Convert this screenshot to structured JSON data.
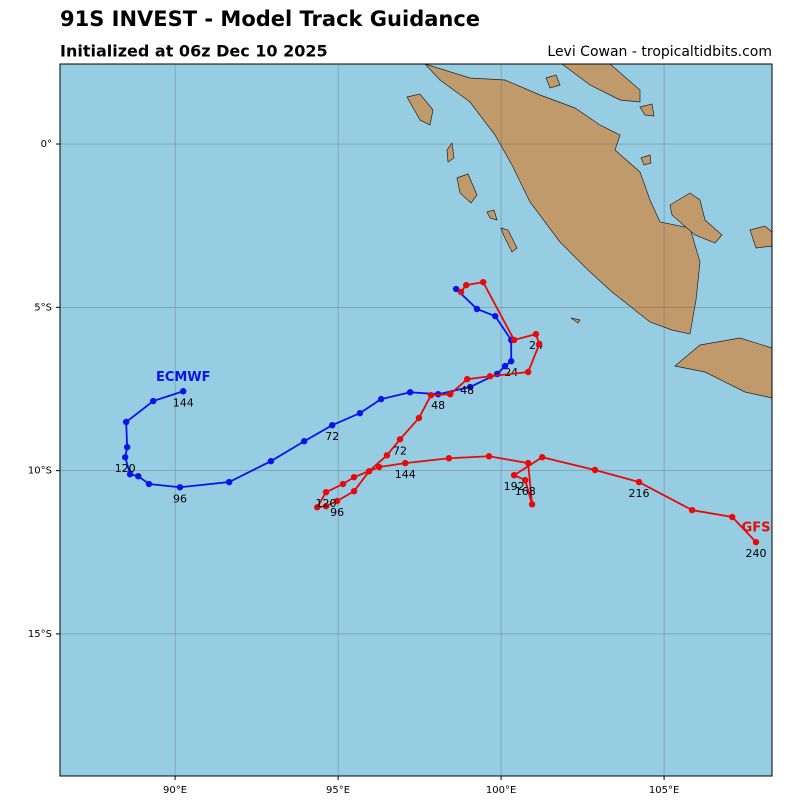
{
  "chart_data": {
    "type": "track-map",
    "title": "91S INVEST - Model Track Guidance",
    "subtitle": "Initialized at 06z Dec 10 2025",
    "credit": "Levi Cowan - tropicaltidbits.com",
    "xlim": [
      86.47,
      108.31
    ],
    "ylim": [
      -19.35,
      2.45
    ],
    "xticks": [
      {
        "value": 90,
        "label": "90°E"
      },
      {
        "value": 95,
        "label": "95°E"
      },
      {
        "value": 100,
        "label": "100°E"
      },
      {
        "value": 105,
        "label": "105°E"
      }
    ],
    "yticks": [
      {
        "value": 0,
        "label": "0°"
      },
      {
        "value": -5,
        "label": "5°S"
      },
      {
        "value": -10,
        "label": "10°S"
      },
      {
        "value": -15,
        "label": "15°S"
      }
    ],
    "grid": true,
    "series": [
      {
        "name": "ECMWF",
        "color": "#0a14e6",
        "x": [
          98.62,
          99.26,
          99.82,
          100.31,
          100.31,
          100.12,
          99.88,
          99.05,
          98.07,
          97.21,
          96.32,
          95.67,
          94.82,
          93.96,
          92.94,
          91.66,
          90.15,
          89.2,
          88.87,
          88.62,
          88.47,
          88.53,
          88.5,
          89.33,
          90.25
        ],
        "y": [
          -4.44,
          -5.05,
          -5.27,
          -6.0,
          -6.65,
          -6.8,
          -7.04,
          -7.44,
          -7.66,
          -7.6,
          -7.81,
          -8.24,
          -8.61,
          -9.1,
          -9.71,
          -10.35,
          -10.51,
          -10.41,
          -10.17,
          -10.11,
          -9.59,
          -9.28,
          -8.51,
          -7.87,
          -7.57
        ],
        "hours": [
          null,
          null,
          null,
          null,
          24,
          null,
          null,
          null,
          48,
          null,
          null,
          null,
          72,
          null,
          null,
          null,
          96,
          null,
          null,
          null,
          120,
          null,
          null,
          null,
          144
        ]
      },
      {
        "name": "GFS",
        "color": "#e60a0a",
        "x": [
          98.77,
          98.93,
          99.45,
          100.4,
          101.07,
          101.17,
          100.83,
          99.66,
          98.96,
          98.44,
          97.85,
          97.48,
          96.9,
          96.5,
          95.95,
          95.49,
          94.97,
          94.63,
          94.36,
          94.63,
          95.15,
          95.49,
          96.26,
          97.06,
          98.4,
          99.63,
          100.83,
          100.95,
          100.74,
          100.4,
          101.26,
          102.88,
          104.23,
          105.86,
          107.09,
          107.82
        ],
        "y": [
          -4.53,
          -4.32,
          -4.23,
          -6.0,
          -5.82,
          -6.13,
          -6.98,
          -7.11,
          -7.2,
          -7.66,
          -7.69,
          -8.39,
          -9.04,
          -9.53,
          -10.02,
          -10.63,
          -10.93,
          -11.09,
          -11.12,
          -10.66,
          -10.41,
          -10.2,
          -9.89,
          -9.77,
          -9.62,
          -9.56,
          -9.77,
          -11.03,
          -10.29,
          -10.14,
          -9.59,
          -9.98,
          -10.35,
          -11.21,
          -11.42,
          -12.19
        ],
        "hours": [
          null,
          null,
          null,
          null,
          24,
          null,
          null,
          null,
          48,
          null,
          null,
          null,
          72,
          null,
          null,
          null,
          96,
          null,
          null,
          120,
          null,
          null,
          null,
          144,
          null,
          null,
          null,
          null,
          168,
          192,
          null,
          null,
          216,
          null,
          null,
          240
        ]
      }
    ]
  }
}
